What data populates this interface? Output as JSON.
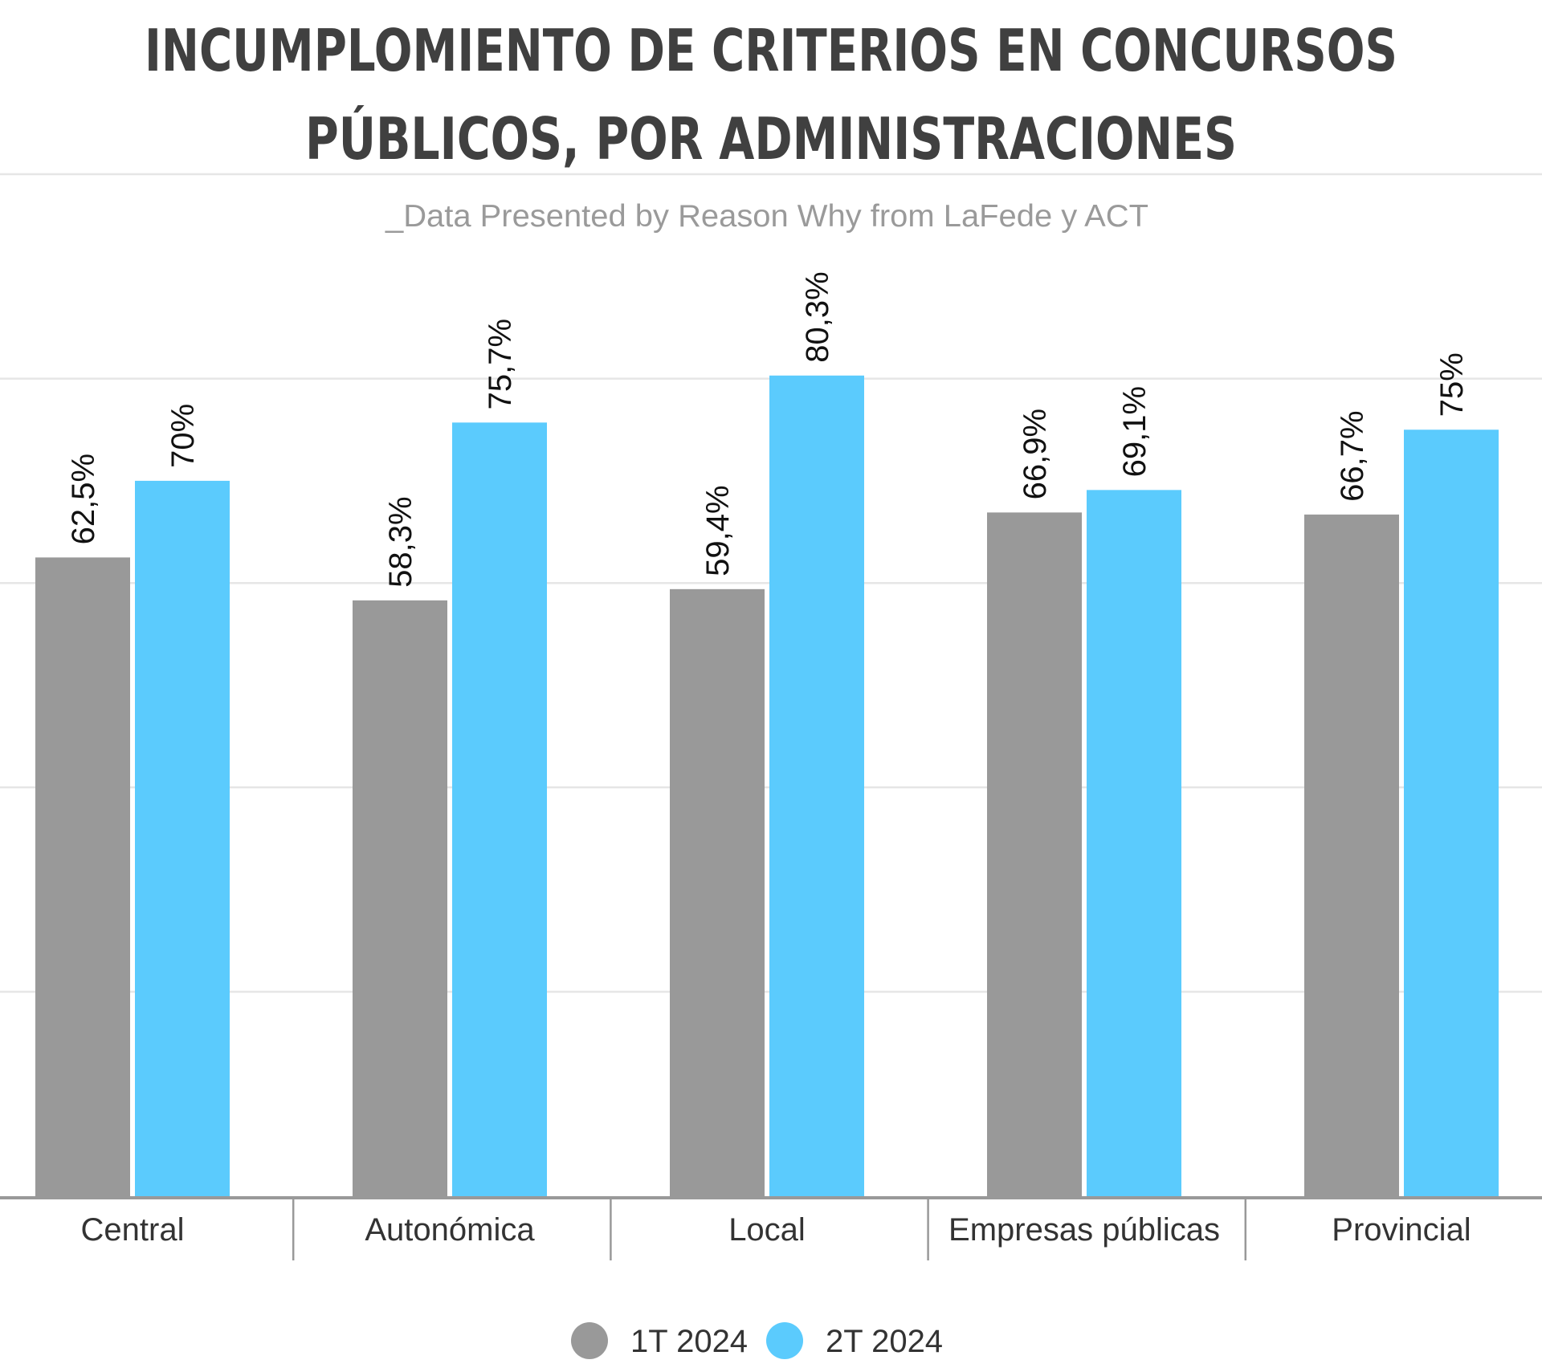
{
  "chart_data": {
    "type": "bar",
    "title_lines": [
      "INCUMPLOMIENTO DE CRITERIOS EN CONCURSOS",
      "PÚBLICOS, POR ADMINISTRACIONES"
    ],
    "subtitle": "_Data Presented by Reason Why from LaFede y ACT",
    "xlabel": "",
    "ylabel": "",
    "ylim": [
      0,
      100
    ],
    "grid": true,
    "legend_position": "bottom",
    "categories": [
      "Central",
      "Autonómica",
      "Local",
      "Empresas públicas",
      "Provincial"
    ],
    "series": [
      {
        "name": "1T 2024",
        "color": "#999999",
        "values": [
          62.5,
          58.3,
          59.4,
          66.9,
          66.7
        ],
        "labels": [
          "62,5%",
          "58,3%",
          "59,4%",
          "66,9%",
          "66,7%"
        ]
      },
      {
        "name": "2T 2024",
        "color": "#5bcbfd",
        "values": [
          70,
          75.7,
          80.3,
          69.1,
          75
        ],
        "labels": [
          "70%",
          "75,7%",
          "80,3%",
          "69,1%",
          "75%"
        ]
      }
    ]
  }
}
